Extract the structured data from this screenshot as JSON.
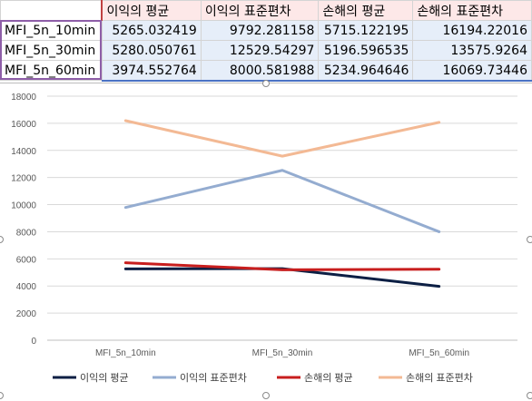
{
  "sheet": {
    "headers": [
      "이익의 평균",
      "이익의 표준편차",
      "손해의 평균",
      "손해의 표준편차"
    ],
    "rows": [
      {
        "label": "MFI_5n_10min",
        "values": [
          "5265.032419",
          "9792.281158",
          "5715.122195",
          "16194.22016"
        ]
      },
      {
        "label": "MFI_5n_30min",
        "values": [
          "5280.050761",
          "12529.54297",
          "5196.596535",
          "13575.9264"
        ]
      },
      {
        "label": "MFI_5n_60min",
        "values": [
          "3974.552764",
          "8000.581988",
          "5234.964646",
          "16069.73446"
        ]
      }
    ]
  },
  "chart_data": {
    "type": "line",
    "title": "",
    "xlabel": "",
    "ylabel": "",
    "categories": [
      "MFI_5n_10min",
      "MFI_5n_30min",
      "MFI_5n_60min"
    ],
    "ylim": [
      0,
      18000
    ],
    "yticks": [
      0,
      2000,
      4000,
      6000,
      8000,
      10000,
      12000,
      14000,
      16000,
      18000
    ],
    "grid": true,
    "legend": "bottom",
    "series": [
      {
        "name": "이익의 평균",
        "color": "#0c1f44",
        "values": [
          5265.032419,
          5280.050761,
          3974.552764
        ]
      },
      {
        "name": "이익의 표준편차",
        "color": "#94acd0",
        "values": [
          9792.281158,
          12529.54297,
          8000.581988
        ]
      },
      {
        "name": "손해의 평균",
        "color": "#c81e1e",
        "values": [
          5715.122195,
          5196.596535,
          5234.964646
        ]
      },
      {
        "name": "손해의 표준편차",
        "color": "#f3b994",
        "values": [
          16194.22016,
          13575.9264,
          16069.73446
        ]
      }
    ]
  }
}
